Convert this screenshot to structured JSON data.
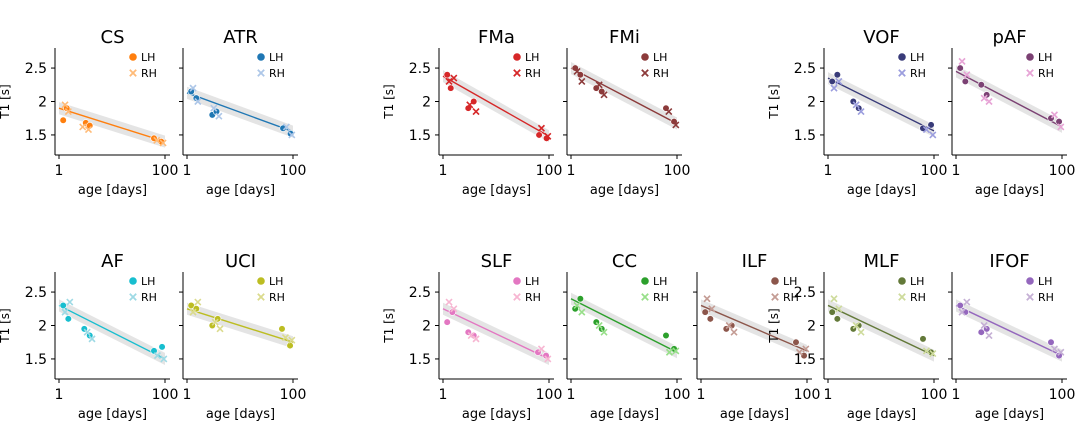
{
  "chart_data": {
    "type": "scatter",
    "x_scale": "log",
    "xlim": [
      1,
      100
    ],
    "ylim": [
      1.2,
      2.8
    ],
    "x_ticks": [
      1,
      100
    ],
    "x_tick_labels": [
      "1",
      "100"
    ],
    "y_ticks": [
      1.5,
      2.0,
      2.5
    ],
    "y_tick_labels": [
      "1.5",
      "2",
      "2.5"
    ],
    "xlabel": "age [days]",
    "ylabel": "T1 [s]",
    "legend_labels": [
      "LH",
      "RH"
    ],
    "panels": [
      {
        "title": "CS",
        "colors": [
          "#ff7f0e",
          "#ffbb78"
        ],
        "fit": [
          1.9,
          1.4
        ],
        "lh": [
          [
            1.2,
            1.72
          ],
          [
            1.4,
            1.9
          ],
          [
            3.2,
            1.68
          ],
          [
            3.8,
            1.64
          ],
          [
            62,
            1.45
          ],
          [
            85,
            1.4
          ]
        ],
        "rh": [
          [
            1.3,
            1.95
          ],
          [
            1.5,
            1.85
          ],
          [
            2.8,
            1.62
          ],
          [
            3.6,
            1.58
          ],
          [
            70,
            1.42
          ],
          [
            92,
            1.38
          ]
        ]
      },
      {
        "title": "ATR",
        "colors": [
          "#1f77b4",
          "#aec7e8"
        ],
        "fit": [
          2.13,
          1.55
        ],
        "lh": [
          [
            1.2,
            2.15
          ],
          [
            1.5,
            2.05
          ],
          [
            3.0,
            1.8
          ],
          [
            3.6,
            1.85
          ],
          [
            65,
            1.6
          ],
          [
            90,
            1.52
          ]
        ],
        "rh": [
          [
            1.3,
            2.2
          ],
          [
            1.6,
            2.0
          ],
          [
            3.2,
            1.9
          ],
          [
            4.0,
            1.78
          ],
          [
            75,
            1.62
          ],
          [
            95,
            1.5
          ]
        ]
      },
      {
        "title": "FMa",
        "colors": [
          "#d62728",
          "#d62728"
        ],
        "fit": [
          2.38,
          1.48
        ],
        "lh": [
          [
            1.2,
            2.4
          ],
          [
            1.4,
            2.2
          ],
          [
            3.0,
            1.9
          ],
          [
            3.8,
            2.0
          ],
          [
            65,
            1.5
          ],
          [
            90,
            1.45
          ]
        ],
        "rh": [
          [
            1.3,
            2.3
          ],
          [
            1.6,
            2.35
          ],
          [
            3.2,
            1.95
          ],
          [
            4.2,
            1.85
          ],
          [
            72,
            1.6
          ],
          [
            95,
            1.48
          ]
        ]
      },
      {
        "title": "FMi",
        "colors": [
          "#8c3b3b",
          "#8c3b3b"
        ],
        "fit": [
          2.5,
          1.67
        ],
        "lh": [
          [
            1.2,
            2.5
          ],
          [
            1.5,
            2.4
          ],
          [
            3.0,
            2.2
          ],
          [
            3.8,
            2.15
          ],
          [
            62,
            1.9
          ],
          [
            88,
            1.7
          ]
        ],
        "rh": [
          [
            1.3,
            2.45
          ],
          [
            1.6,
            2.3
          ],
          [
            3.4,
            2.25
          ],
          [
            4.2,
            2.1
          ],
          [
            70,
            1.85
          ],
          [
            95,
            1.65
          ]
        ]
      },
      {
        "title": "VOF",
        "colors": [
          "#393b79",
          "#9c9ede"
        ],
        "fit": [
          2.35,
          1.56
        ],
        "lh": [
          [
            1.2,
            2.3
          ],
          [
            1.5,
            2.4
          ],
          [
            3.0,
            2.0
          ],
          [
            3.8,
            1.9
          ],
          [
            62,
            1.6
          ],
          [
            88,
            1.65
          ]
        ],
        "rh": [
          [
            1.3,
            2.2
          ],
          [
            1.6,
            2.3
          ],
          [
            3.4,
            1.95
          ],
          [
            4.2,
            1.85
          ],
          [
            72,
            1.58
          ],
          [
            95,
            1.5
          ]
        ]
      },
      {
        "title": "pAF",
        "colors": [
          "#7b4173",
          "#e7a4d6"
        ],
        "fit": [
          2.45,
          1.62
        ],
        "lh": [
          [
            1.2,
            2.5
          ],
          [
            1.5,
            2.3
          ],
          [
            3.0,
            2.25
          ],
          [
            3.8,
            2.1
          ],
          [
            62,
            1.75
          ],
          [
            88,
            1.7
          ]
        ],
        "rh": [
          [
            1.3,
            2.6
          ],
          [
            1.6,
            2.4
          ],
          [
            3.4,
            2.05
          ],
          [
            4.2,
            2.0
          ],
          [
            72,
            1.8
          ],
          [
            95,
            1.62
          ]
        ]
      },
      {
        "title": "AF",
        "colors": [
          "#17becf",
          "#9edae5"
        ],
        "fit": [
          2.3,
          1.5
        ],
        "lh": [
          [
            1.2,
            2.3
          ],
          [
            1.5,
            2.1
          ],
          [
            3.0,
            1.95
          ],
          [
            3.8,
            1.85
          ],
          [
            62,
            1.62
          ],
          [
            88,
            1.68
          ]
        ],
        "rh": [
          [
            1.3,
            2.2
          ],
          [
            1.6,
            2.35
          ],
          [
            3.4,
            1.9
          ],
          [
            4.2,
            1.8
          ],
          [
            72,
            1.55
          ],
          [
            95,
            1.5
          ]
        ]
      },
      {
        "title": "UCI",
        "colors": [
          "#bcbd22",
          "#dbdb8d"
        ],
        "fit": [
          2.25,
          1.75
        ],
        "lh": [
          [
            1.2,
            2.3
          ],
          [
            1.5,
            2.25
          ],
          [
            3.0,
            2.0
          ],
          [
            3.8,
            2.1
          ],
          [
            62,
            1.95
          ],
          [
            88,
            1.7
          ]
        ],
        "rh": [
          [
            1.3,
            2.2
          ],
          [
            1.6,
            2.35
          ],
          [
            3.4,
            2.05
          ],
          [
            4.2,
            1.95
          ],
          [
            72,
            1.82
          ],
          [
            95,
            1.78
          ]
        ]
      },
      {
        "title": "SLF",
        "colors": [
          "#e377c2",
          "#f7b6d2"
        ],
        "fit": [
          2.25,
          1.5
        ],
        "lh": [
          [
            1.2,
            2.05
          ],
          [
            1.5,
            2.2
          ],
          [
            3.0,
            1.9
          ],
          [
            3.8,
            1.85
          ],
          [
            62,
            1.6
          ],
          [
            88,
            1.55
          ]
        ],
        "rh": [
          [
            1.3,
            2.35
          ],
          [
            1.6,
            2.25
          ],
          [
            3.4,
            1.85
          ],
          [
            4.2,
            1.8
          ],
          [
            72,
            1.65
          ],
          [
            95,
            1.5
          ]
        ]
      },
      {
        "title": "CC",
        "colors": [
          "#2ca02c",
          "#98df8a"
        ],
        "fit": [
          2.4,
          1.6
        ],
        "lh": [
          [
            1.2,
            2.25
          ],
          [
            1.5,
            2.4
          ],
          [
            3.0,
            2.05
          ],
          [
            3.8,
            1.95
          ],
          [
            62,
            1.85
          ],
          [
            88,
            1.65
          ]
        ],
        "rh": [
          [
            1.3,
            2.3
          ],
          [
            1.6,
            2.2
          ],
          [
            3.4,
            2.0
          ],
          [
            4.2,
            1.9
          ],
          [
            72,
            1.6
          ],
          [
            95,
            1.62
          ]
        ]
      },
      {
        "title": "ILF",
        "colors": [
          "#8c564b",
          "#c49c94"
        ],
        "fit": [
          2.3,
          1.62
        ],
        "lh": [
          [
            1.2,
            2.2
          ],
          [
            1.5,
            2.1
          ],
          [
            3.0,
            1.95
          ],
          [
            3.8,
            2.0
          ],
          [
            62,
            1.75
          ],
          [
            88,
            1.55
          ]
        ],
        "rh": [
          [
            1.3,
            2.4
          ],
          [
            1.6,
            2.25
          ],
          [
            3.4,
            2.0
          ],
          [
            4.2,
            1.9
          ],
          [
            72,
            1.6
          ],
          [
            95,
            1.65
          ]
        ]
      },
      {
        "title": "MLF",
        "colors": [
          "#637939",
          "#cedb9c"
        ],
        "fit": [
          2.3,
          1.55
        ],
        "lh": [
          [
            1.2,
            2.2
          ],
          [
            1.5,
            2.1
          ],
          [
            3.0,
            1.95
          ],
          [
            3.8,
            2.0
          ],
          [
            62,
            1.8
          ],
          [
            88,
            1.6
          ]
        ],
        "rh": [
          [
            1.3,
            2.4
          ],
          [
            1.6,
            2.25
          ],
          [
            3.4,
            2.0
          ],
          [
            4.2,
            1.9
          ],
          [
            72,
            1.62
          ],
          [
            95,
            1.58
          ]
        ]
      },
      {
        "title": "IFOF",
        "colors": [
          "#9467bd",
          "#c5b0d5"
        ],
        "fit": [
          2.3,
          1.55
        ],
        "lh": [
          [
            1.2,
            2.3
          ],
          [
            1.5,
            2.2
          ],
          [
            3.0,
            1.9
          ],
          [
            3.8,
            1.95
          ],
          [
            62,
            1.75
          ],
          [
            88,
            1.55
          ]
        ],
        "rh": [
          [
            1.3,
            2.2
          ],
          [
            1.6,
            2.35
          ],
          [
            3.4,
            2.0
          ],
          [
            4.2,
            1.85
          ],
          [
            72,
            1.65
          ],
          [
            95,
            1.6
          ]
        ]
      }
    ]
  }
}
